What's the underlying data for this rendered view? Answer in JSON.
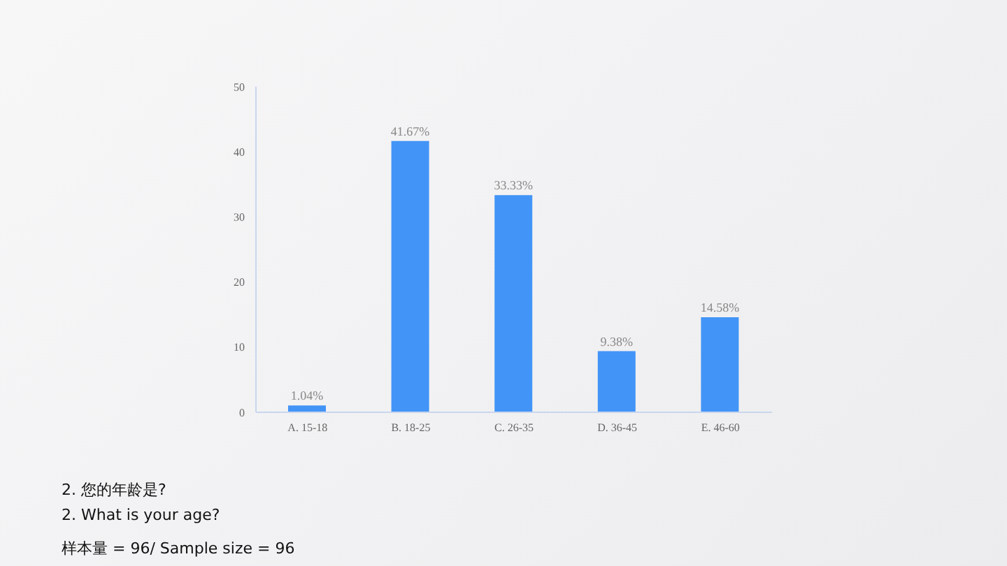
{
  "chart_data": {
    "type": "bar",
    "categories": [
      "A. 15-18",
      "B. 18-25",
      "C. 26-35",
      "D. 36-45",
      "E. 46-60"
    ],
    "values": [
      1.04,
      41.67,
      33.33,
      9.38,
      14.58
    ],
    "value_labels": [
      "1.04%",
      "41.67%",
      "33.33%",
      "9.38%",
      "14.58%"
    ],
    "color": "#4394f7",
    "ylim": [
      0,
      50
    ],
    "yticks": [
      0,
      10,
      20,
      30,
      40,
      50
    ],
    "grid": false,
    "legend": false,
    "annotations": [
      "2. 您的年龄是?",
      "2. What is your age?",
      "样本量 = 96/ Sample size = 96"
    ]
  }
}
